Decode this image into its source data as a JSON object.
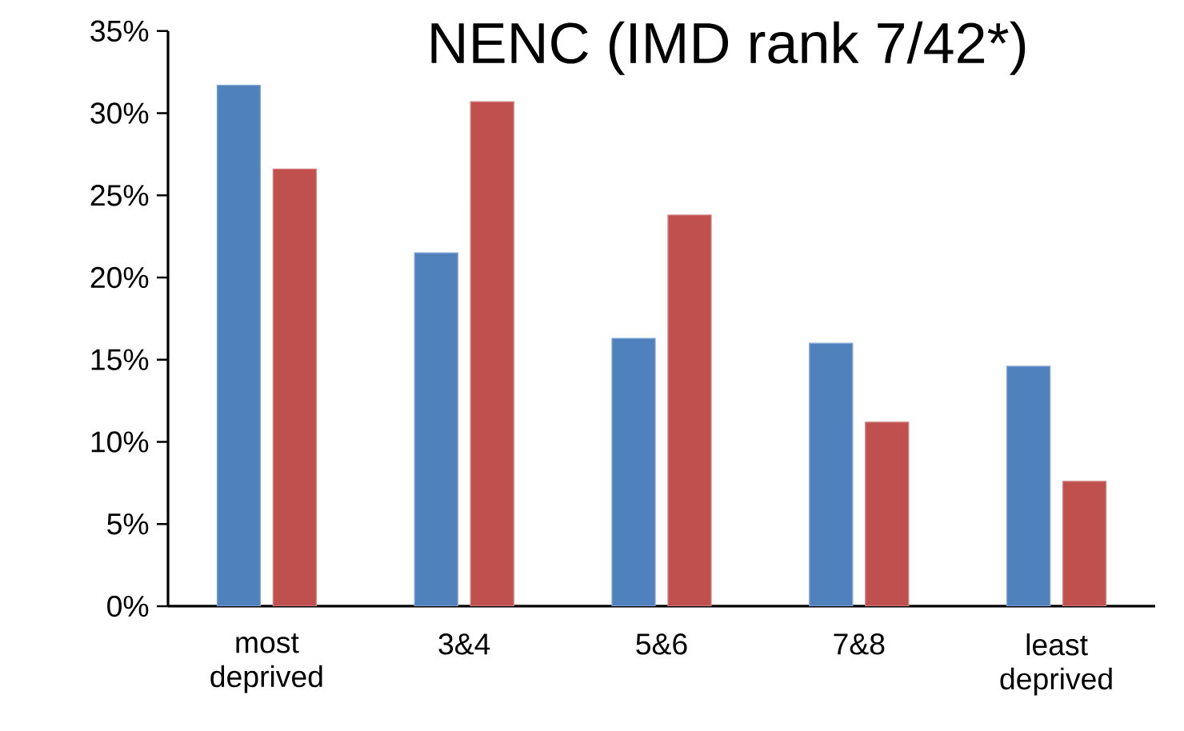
{
  "chart_data": {
    "type": "bar",
    "title": "NENC (IMD rank 7/42*)",
    "categories": [
      "most deprived",
      "3&4",
      "5&6",
      "7&8",
      "least deprived"
    ],
    "series": [
      {
        "color": "#4f81bd",
        "values": [
          31.7,
          21.5,
          16.3,
          16.0,
          14.6
        ]
      },
      {
        "color": "#c0504d",
        "values": [
          26.6,
          30.7,
          23.8,
          11.2,
          7.6
        ]
      }
    ],
    "ylim": [
      0,
      35
    ],
    "yticks": [
      {
        "value": 0,
        "label": "0%"
      },
      {
        "value": 5,
        "label": "5%"
      },
      {
        "value": 10,
        "label": "10%"
      },
      {
        "value": 15,
        "label": "15%"
      },
      {
        "value": 20,
        "label": "20%"
      },
      {
        "value": 25,
        "label": "25%"
      },
      {
        "value": 30,
        "label": "30%"
      },
      {
        "value": 35,
        "label": "35%"
      }
    ],
    "grid": false
  }
}
